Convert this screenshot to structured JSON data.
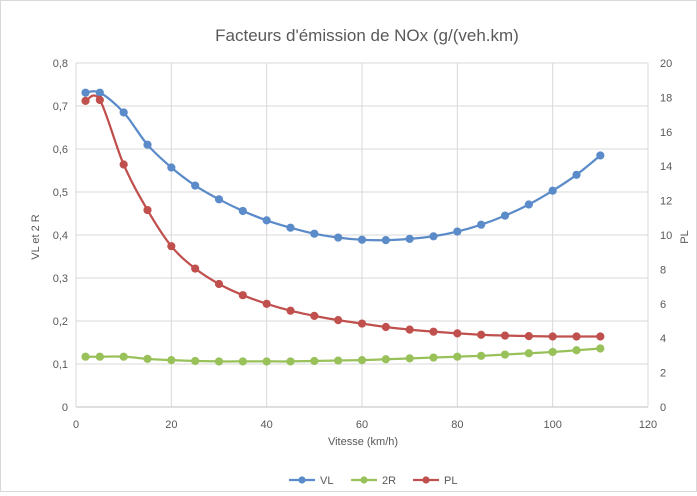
{
  "chart_data": {
    "type": "line",
    "title": "Facteurs d'émission de NOx (g/(veh.km)",
    "xlabel": "Vitesse (km/h)",
    "ylabel": "VL et 2 R",
    "y2label": "PL",
    "xlim": [
      0,
      120
    ],
    "ylim": [
      0,
      0.8
    ],
    "y2lim": [
      0,
      20
    ],
    "x_ticks": [
      0,
      20,
      40,
      60,
      80,
      100,
      120
    ],
    "y_ticks": [
      "0",
      "0,1",
      "0,2",
      "0,3",
      "0,4",
      "0,5",
      "0,6",
      "0,7",
      "0,8"
    ],
    "y2_ticks": [
      "0",
      "2",
      "4",
      "6",
      "8",
      "10",
      "12",
      "14",
      "16",
      "18",
      "20"
    ],
    "grid": true,
    "legend_position": "bottom",
    "series": [
      {
        "name": "VL",
        "axis": "left",
        "color": "#5b8bc9",
        "x": [
          2,
          5,
          10,
          15,
          20,
          25,
          30,
          35,
          40,
          45,
          50,
          55,
          60,
          65,
          70,
          75,
          80,
          85,
          90,
          95,
          100,
          105,
          110
        ],
        "values": [
          0.731,
          0.731,
          0.685,
          0.61,
          0.557,
          0.515,
          0.483,
          0.456,
          0.434,
          0.417,
          0.403,
          0.394,
          0.389,
          0.388,
          0.391,
          0.397,
          0.408,
          0.424,
          0.445,
          0.471,
          0.503,
          0.54,
          0.585
        ]
      },
      {
        "name": "2R",
        "axis": "left",
        "color": "#99c15a",
        "x": [
          2,
          5,
          10,
          15,
          20,
          25,
          30,
          35,
          40,
          45,
          50,
          55,
          60,
          65,
          70,
          75,
          80,
          85,
          90,
          95,
          100,
          105,
          110
        ],
        "values": [
          0.117,
          0.117,
          0.117,
          0.112,
          0.109,
          0.107,
          0.106,
          0.106,
          0.106,
          0.106,
          0.107,
          0.108,
          0.109,
          0.111,
          0.113,
          0.115,
          0.117,
          0.119,
          0.122,
          0.125,
          0.128,
          0.132,
          0.136
        ]
      },
      {
        "name": "PL",
        "axis": "right",
        "color": "#c0504d",
        "x": [
          2,
          5,
          10,
          15,
          20,
          25,
          30,
          35,
          40,
          45,
          50,
          55,
          60,
          65,
          70,
          75,
          80,
          85,
          90,
          95,
          100,
          105,
          110
        ],
        "values": [
          17.8,
          17.85,
          14.1,
          11.45,
          9.35,
          8.05,
          7.15,
          6.5,
          6.0,
          5.6,
          5.3,
          5.05,
          4.85,
          4.65,
          4.5,
          4.38,
          4.28,
          4.2,
          4.15,
          4.12,
          4.1,
          4.1,
          4.1
        ]
      }
    ]
  }
}
